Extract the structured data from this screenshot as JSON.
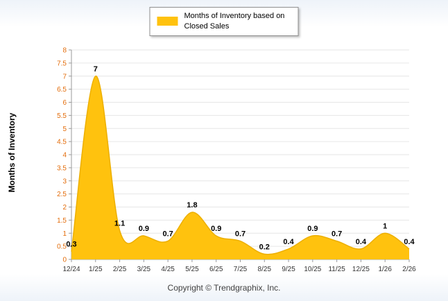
{
  "legend": {
    "label": "Months of Inventory based on Closed Sales"
  },
  "footer": {
    "text": "Copyright © Trendgraphix, Inc."
  },
  "chart_data": {
    "type": "area",
    "title": "",
    "categories": [
      "12/24",
      "1/25",
      "2/25",
      "3/25",
      "4/25",
      "5/25",
      "6/25",
      "7/25",
      "8/25",
      "9/25",
      "10/25",
      "11/25",
      "12/25",
      "1/26",
      "2/26"
    ],
    "series": [
      {
        "name": "Months of Inventory based on Closed Sales",
        "values": [
          0.3,
          7,
          1.1,
          0.9,
          0.7,
          1.8,
          0.9,
          0.7,
          0.2,
          0.4,
          0.9,
          0.7,
          0.4,
          1,
          0.4
        ]
      }
    ],
    "xlabel": "",
    "ylabel": "Months of Inventory",
    "ylim": [
      0,
      8
    ],
    "ytick_step": 0.5,
    "grid": true,
    "legend_position": "top-center",
    "colors": {
      "series": "#FFC20E",
      "series_stroke": "#EDAF00",
      "ytick_labels": "#E36C0A",
      "xtick_labels": "#333333",
      "point_labels": "#000000",
      "gridline": "#E6E6E6",
      "axis": "#999999"
    }
  }
}
